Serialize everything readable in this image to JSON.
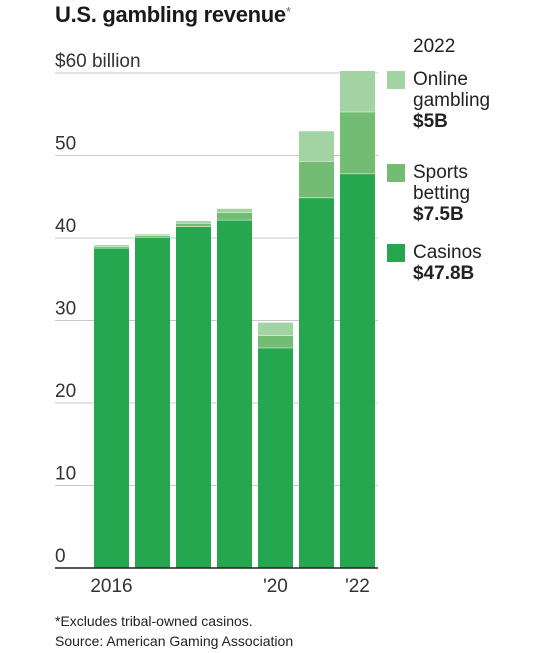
{
  "title": "U.S. gambling revenue",
  "title_mark": "*",
  "footnote": "*Excludes tribal-owned casinos.",
  "source": "Source: American Gaming Association",
  "legend": {
    "year": "2022",
    "items": [
      {
        "label": "Online\ngambling",
        "value": "$5B",
        "color": "#a3d3a2"
      },
      {
        "label": "Sports\nbetting",
        "value": "$7.5B",
        "color": "#72bc73"
      },
      {
        "label": "Casinos",
        "value": "$47.8B",
        "color": "#27a650"
      }
    ]
  },
  "chart_data": {
    "type": "bar",
    "stacked": true,
    "categories": [
      "2016",
      "2017",
      "2018",
      "2019",
      "2020",
      "2021",
      "2022"
    ],
    "x_tick_labels": [
      "2016",
      "",
      "",
      "",
      "'20",
      "",
      "'22"
    ],
    "series": [
      {
        "name": "Casinos",
        "color": "#27a650",
        "values": [
          38.8,
          40.1,
          41.4,
          42.2,
          26.7,
          44.9,
          47.8
        ]
      },
      {
        "name": "Sports betting",
        "color": "#72bc73",
        "values": [
          0.2,
          0.2,
          0.4,
          0.9,
          1.5,
          4.4,
          7.5
        ]
      },
      {
        "name": "Online gambling",
        "color": "#a3d3a2",
        "values": [
          0.2,
          0.2,
          0.3,
          0.5,
          1.6,
          3.7,
          5.0
        ]
      }
    ],
    "y_ticks": [
      0,
      10,
      20,
      30,
      40,
      50,
      60
    ],
    "y_tick_labels": [
      "0",
      "10",
      "20",
      "30",
      "40",
      "50",
      "$60 billion"
    ],
    "ylim": [
      0,
      60
    ],
    "grid": true
  }
}
